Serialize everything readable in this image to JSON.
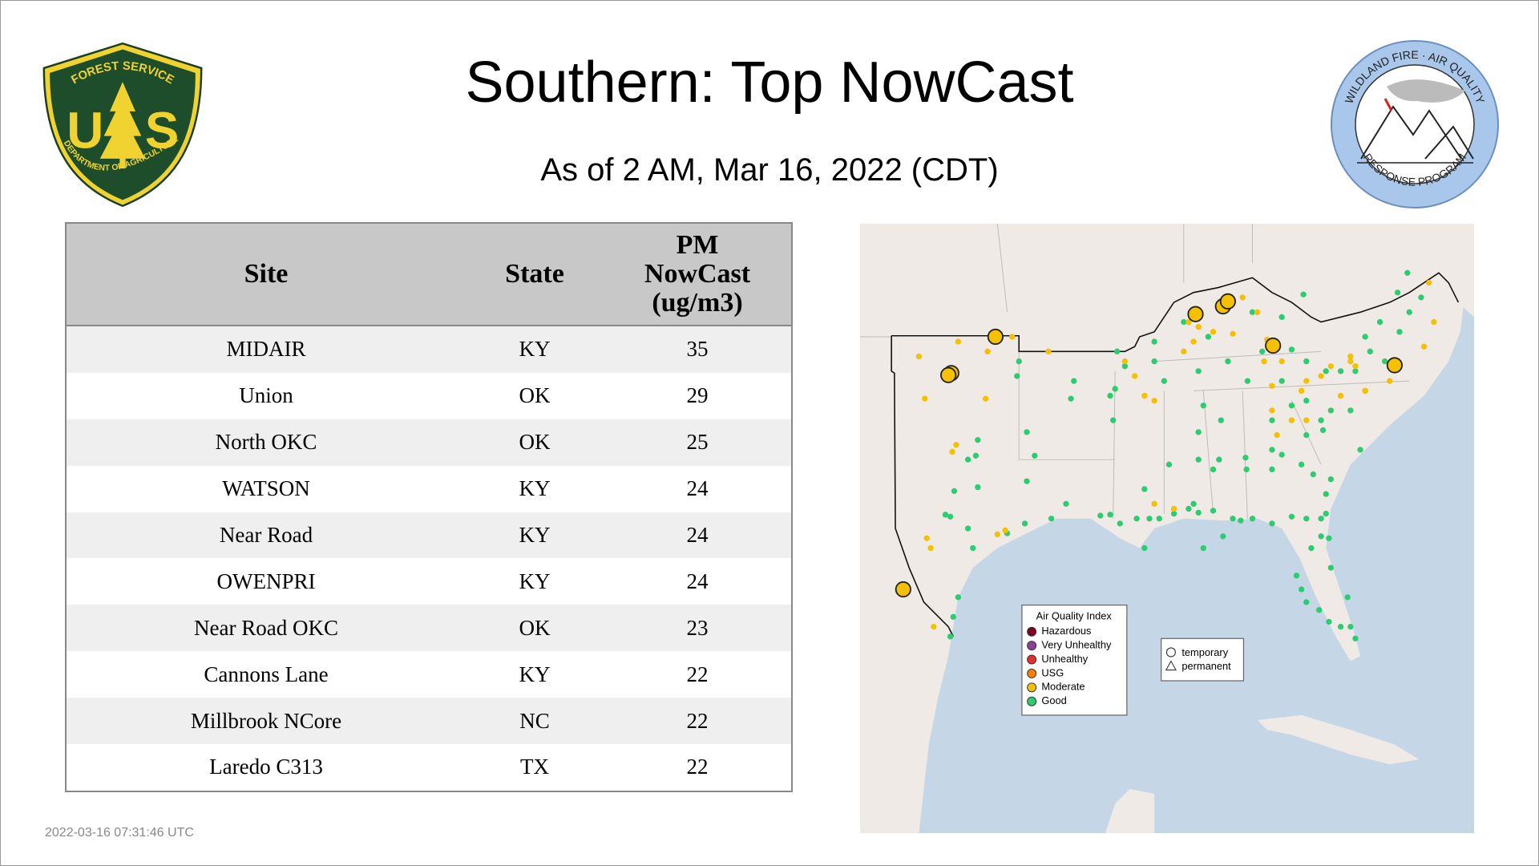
{
  "header": {
    "title": "Southern: Top NowCast",
    "subtitle": "As of  2 AM, Mar 16, 2022 (CDT)"
  },
  "logos": {
    "usfs": [
      "FOREST SERVICE",
      "U",
      "S",
      "DEPARTMENT OF AGRICULTURE"
    ],
    "wfaqrp": [
      "WILDLAND FIRE · AIR QUALITY",
      "RESPONSE PROGRAM"
    ]
  },
  "table": {
    "columns": [
      "Site",
      "State",
      "PM NowCast (ug/m3)"
    ],
    "rows": [
      [
        "MIDAIR",
        "KY",
        35
      ],
      [
        "Union",
        "OK",
        29
      ],
      [
        "North OKC",
        "OK",
        25
      ],
      [
        "WATSON",
        "KY",
        24
      ],
      [
        "Near Road",
        "KY",
        24
      ],
      [
        "OWENPRI",
        "KY",
        24
      ],
      [
        "Near Road OKC",
        "OK",
        23
      ],
      [
        "Cannons Lane",
        "KY",
        22
      ],
      [
        "Millbrook NCore",
        "NC",
        22
      ],
      [
        "Laredo C313",
        "TX",
        22
      ]
    ]
  },
  "map": {
    "legend_title": "Air Quality Index",
    "categories": [
      "Hazardous",
      "Very Unhealthy",
      "Unhealthy",
      "USG",
      "Moderate",
      "Good"
    ],
    "site_types": [
      "temporary",
      "permanent"
    ]
  },
  "footer": {
    "timestamp": "2022-03-16 07:31:46 UTC"
  }
}
